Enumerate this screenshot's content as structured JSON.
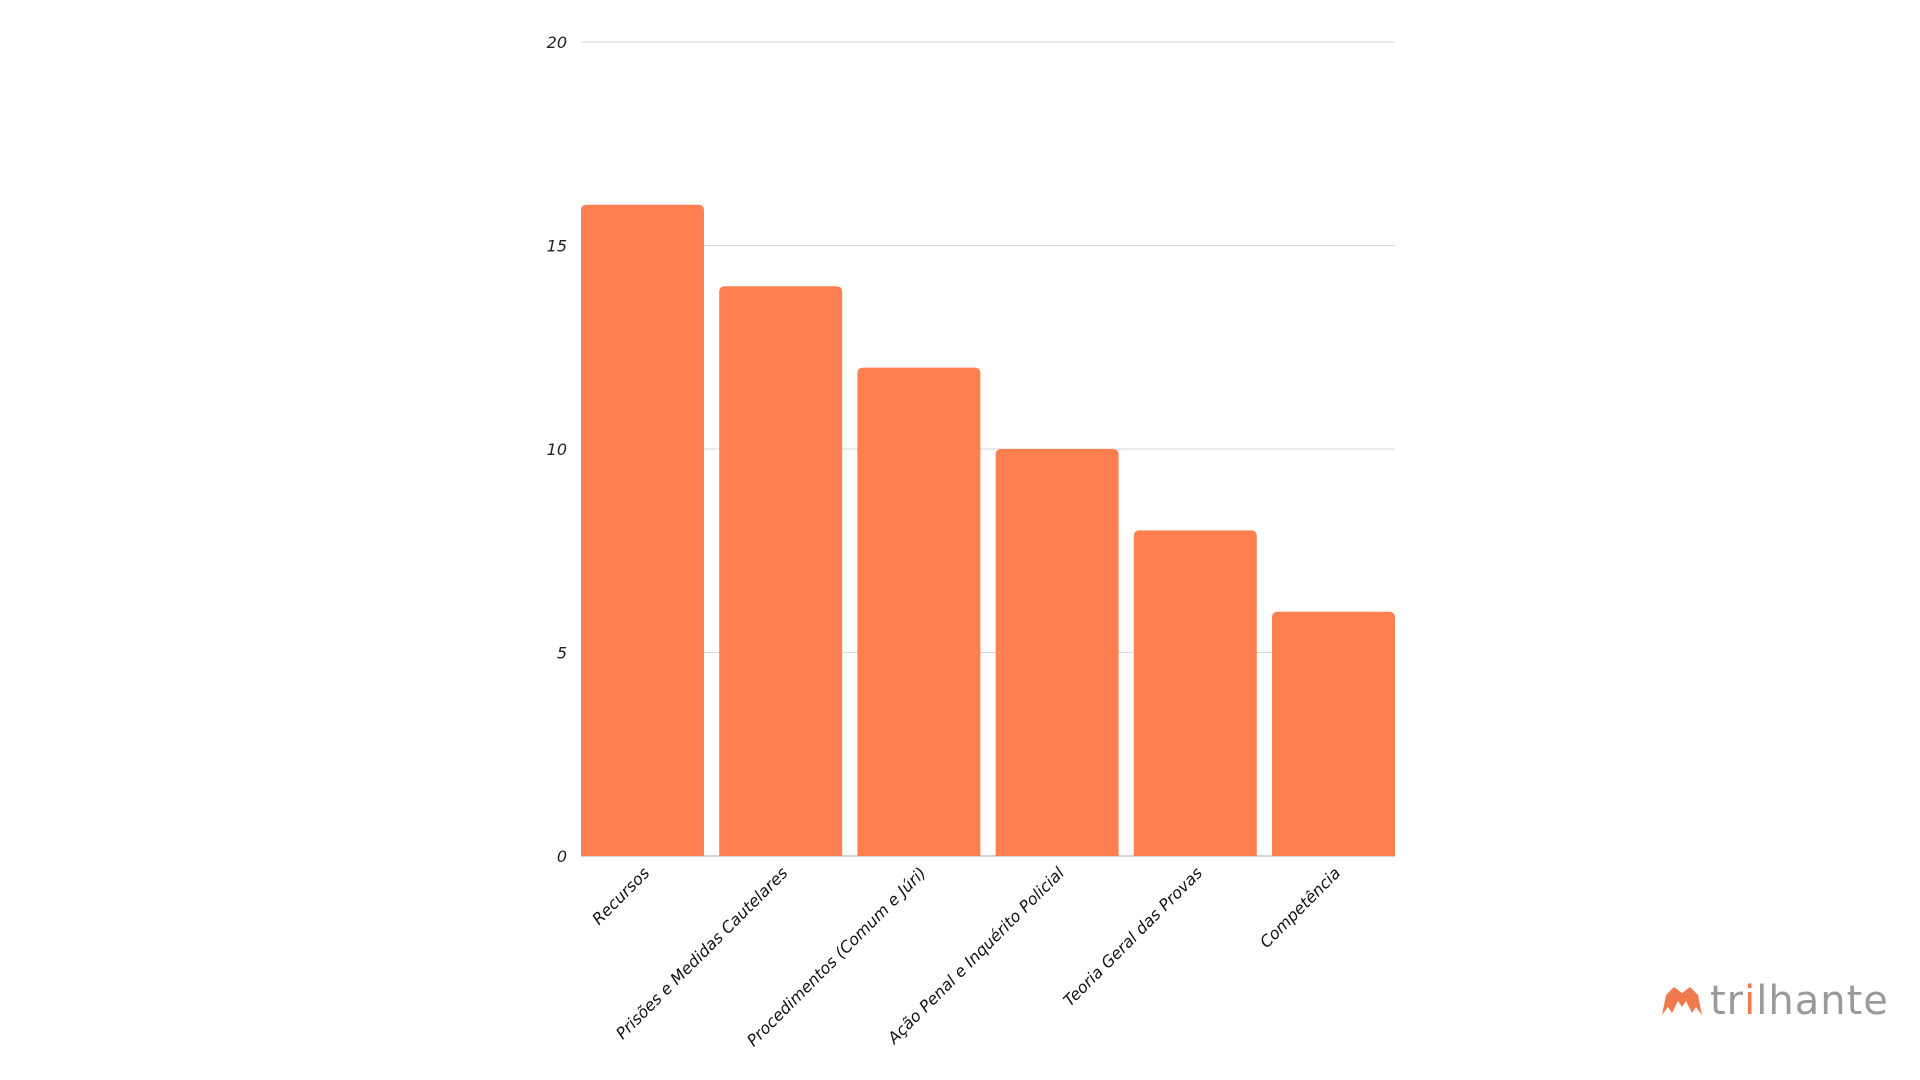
{
  "chart_data": {
    "type": "bar",
    "categories": [
      "Recursos",
      "Prisões e Medidas Cautelares",
      "Procedimentos (Comum e Júri)",
      "Ação Penal e Inquérito Policial",
      "Teoria Geral das Provas",
      "Competência"
    ],
    "values": [
      16,
      14,
      12,
      10,
      8,
      6
    ],
    "title": "",
    "xlabel": "",
    "ylabel": "",
    "ylim": [
      0,
      20
    ],
    "yticks": [
      0,
      5,
      10,
      15,
      20
    ],
    "grid": true,
    "bar_color": "#ff7f51",
    "grid_color": "#d9d9d9"
  },
  "logo": {
    "text": "trilhante",
    "text_parts": [
      "tr",
      "i",
      "lhante"
    ],
    "text_color": "#9a9a9a",
    "accent_color": "#f07a4e",
    "icon": "mountain-icon"
  }
}
